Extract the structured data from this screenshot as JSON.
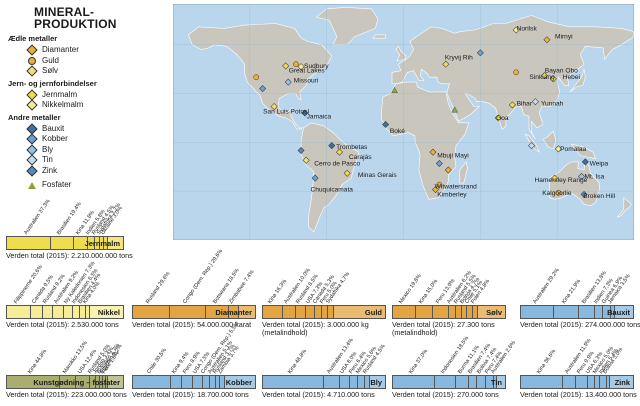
{
  "title": [
    "MINERAL-",
    "PRODUKTION"
  ],
  "legend": {
    "groups": [
      {
        "heading": "Ædle metaller",
        "items": [
          {
            "label": "Diamanter",
            "shape": "diamond",
            "color": "#e8b03a"
          },
          {
            "label": "Guld",
            "shape": "circle",
            "color": "#e8b03a"
          },
          {
            "label": "Sølv",
            "shape": "diamond",
            "color": "#f4e07a"
          }
        ]
      },
      {
        "heading": "Jern- og jernforbindelser",
        "items": [
          {
            "label": "Jernmalm",
            "shape": "diamond",
            "color": "#f0dc50"
          },
          {
            "label": "Nikkelmalm",
            "shape": "diamond",
            "color": "#f7ec98"
          }
        ]
      },
      {
        "heading": "Andre metaller",
        "items": [
          {
            "label": "Bauxit",
            "shape": "diamond",
            "color": "#3e6f9e"
          },
          {
            "label": "Kobber",
            "shape": "diamond",
            "color": "#6ea0cc"
          },
          {
            "label": "Bly",
            "shape": "diamond",
            "color": "#9bc1e2"
          },
          {
            "label": "Tin",
            "shape": "diamond",
            "color": "#c7dcee"
          },
          {
            "label": "Zink",
            "shape": "diamond",
            "color": "#5a88b8"
          }
        ]
      },
      {
        "heading": "",
        "items": [
          {
            "label": "Fosfater",
            "shape": "triangle",
            "color": "#8aa63a"
          }
        ]
      }
    ]
  },
  "map_labels": [
    {
      "text": "Sudbury",
      "lon": -80,
      "lat": 47
    },
    {
      "text": "Great Lakes",
      "lon": -92,
      "lat": 44
    },
    {
      "text": "Missouri",
      "lon": -88,
      "lat": 38
    },
    {
      "text": "San Luis Potosí",
      "lon": -112,
      "lat": 19
    },
    {
      "text": "Jamaica",
      "lon": -78,
      "lat": 16
    },
    {
      "text": "Trombetas",
      "lon": -55,
      "lat": -3
    },
    {
      "text": "Carajás",
      "lon": -45,
      "lat": -9
    },
    {
      "text": "Cerro de Pasco",
      "lon": -72,
      "lat": -13
    },
    {
      "text": "Chuquicamata",
      "lon": -75,
      "lat": -29
    },
    {
      "text": "Minas Gerais",
      "lon": -38,
      "lat": -20
    },
    {
      "text": "Boké",
      "lon": -13,
      "lat": 7
    },
    {
      "text": "Mbuji Mayi",
      "lon": 24,
      "lat": -8
    },
    {
      "text": "Witwatersrand",
      "lon": 22,
      "lat": -27
    },
    {
      "text": "Kimberley",
      "lon": 24,
      "lat": -32
    },
    {
      "text": "Kryvij Rih",
      "lon": 30,
      "lat": 52
    },
    {
      "text": "Norilsk",
      "lon": 86,
      "lat": 70
    },
    {
      "text": "Mirnyi",
      "lon": 116,
      "lat": 65
    },
    {
      "text": "Bayan Obo",
      "lon": 108,
      "lat": 44
    },
    {
      "text": "Sinkiang",
      "lon": 96,
      "lat": 40
    },
    {
      "text": "Hebei",
      "lon": 122,
      "lat": 40
    },
    {
      "text": "Yunnah",
      "lon": 105,
      "lat": 24
    },
    {
      "text": "Bihar",
      "lon": 86,
      "lat": 24
    },
    {
      "text": "Goa",
      "lon": 70,
      "lat": 15
    },
    {
      "text": "Pomalaa",
      "lon": 120,
      "lat": -4
    },
    {
      "text": "Weipa",
      "lon": 143,
      "lat": -13
    },
    {
      "text": "Hamersley Range",
      "lon": 100,
      "lat": -23
    },
    {
      "text": "Mt. Isa",
      "lon": 139,
      "lat": -21
    },
    {
      "text": "Kalgoorlie",
      "lon": 106,
      "lat": -31
    },
    {
      "text": "Broken Hill",
      "lon": 138,
      "lat": -33
    }
  ],
  "charts": [
    {
      "name": "Jernmalm",
      "color": "#f0dc50",
      "total": "Verden total (2015): 2.210.000.000 tons",
      "subtotal": "",
      "shares": [
        {
          "label": "Australien 37,3%",
          "value": 37.3
        },
        {
          "label": "Brasilien 19,4%",
          "value": 19.4
        },
        {
          "label": "Kina 11,8%",
          "value": 11.8
        },
        {
          "label": "Indien 5,8%",
          "value": 5.8
        },
        {
          "label": "Rusland 4,5%",
          "value": 4.5
        },
        {
          "label": "Sydafrika 3,7%",
          "value": 3.7
        },
        {
          "label": "Ukraine 3,0%",
          "value": 3.0
        }
      ]
    },
    {
      "name": "Nikkel",
      "color": "#f7ec98",
      "total": "Verden total (2015): 2.530.000 tons",
      "subtotal": "",
      "shares": [
        {
          "label": "Filippinerne 20,6%",
          "value": 20.6
        },
        {
          "label": "Canada 9,5%",
          "value": 9.5
        },
        {
          "label": "Rusland 9,2%",
          "value": 9.2
        },
        {
          "label": "Australien 9,2%",
          "value": 9.2
        },
        {
          "label": "Ny Kaledonien 7,3%",
          "value": 7.3
        },
        {
          "label": "Indonesien 6,5%",
          "value": 6.5
        },
        {
          "label": "Brasilien 4,4%",
          "value": 4.4
        },
        {
          "label": "Kina 4,0%",
          "value": 4.0
        }
      ]
    },
    {
      "name": "Diamanter",
      "color": "#e3a542",
      "total": "Verden total (2015): 54.000.000 karat",
      "subtotal": "",
      "shares": [
        {
          "label": "Rusland 29,6%",
          "value": 29.6
        },
        {
          "label": "Congo (Dem. Rep.) 29,6%",
          "value": 29.6
        },
        {
          "label": "Botswana 18,5%",
          "value": 18.5
        },
        {
          "label": "Zimbabwe 7,4%",
          "value": 7.4
        }
      ]
    },
    {
      "name": "Guld",
      "color": "#e3a542",
      "total": "Verden total (2015): 3.000.000 kg",
      "subtotal": "(metalindhold)",
      "shares": [
        {
          "label": "Kina 16,3%",
          "value": 16.3
        },
        {
          "label": "Australien 10,0%",
          "value": 10.0
        },
        {
          "label": "Rusland 8,5%",
          "value": 8.5
        },
        {
          "label": "USA 7,3%",
          "value": 7.3
        },
        {
          "label": "Canada 5,3%",
          "value": 5.3
        },
        {
          "label": "Peru 5,0%",
          "value": 5.0
        },
        {
          "label": "Sydafrika 4,7%",
          "value": 4.7
        }
      ]
    },
    {
      "name": "Sølv",
      "color": "#e3a542",
      "total": "Verden total (2015): 27.300 tons",
      "subtotal": "(metalindhold)",
      "shares": [
        {
          "label": "Mexico 19,8%",
          "value": 19.8
        },
        {
          "label": "Kina 15,0%",
          "value": 15.0
        },
        {
          "label": "Peru 13,9%",
          "value": 13.9
        },
        {
          "label": "Australien 6,2%",
          "value": 6.2
        },
        {
          "label": "Rusland 5,5%",
          "value": 5.5
        },
        {
          "label": "Bolivia 4,7%",
          "value": 4.7
        },
        {
          "label": "Chile 5,1%",
          "value": 5.1
        },
        {
          "label": "Polen 4,8%",
          "value": 4.8
        }
      ]
    },
    {
      "name": "Bauxit",
      "color": "#88b8de",
      "total": "Verden total (2015): 274.000.000 tons",
      "subtotal": "",
      "shares": [
        {
          "label": "Australien 29,2%",
          "value": 29.2
        },
        {
          "label": "Kina 21,9%",
          "value": 21.9
        },
        {
          "label": "Brasilien 13,8%",
          "value": 13.8
        },
        {
          "label": "Indien 7,3%",
          "value": 7.3
        },
        {
          "label": "Guinea 6,9%",
          "value": 6.9
        },
        {
          "label": "Jamaica 3,5%",
          "value": 3.5
        }
      ]
    },
    {
      "name": "Kunstgødning – fosfater",
      "color": "#a9ae6e",
      "total": "Verden total (2015): 223.000.000 tons",
      "subtotal": "",
      "shares": [
        {
          "label": "Kina 44,8%",
          "value": 44.8
        },
        {
          "label": "Marokko 13,5%",
          "value": 13.5
        },
        {
          "label": "USA 12,4%",
          "value": 12.4
        },
        {
          "label": "Rusland 5,0%",
          "value": 5.0
        },
        {
          "label": "Jordan 3,4%",
          "value": 3.4
        },
        {
          "label": "Brasilien 2,7%",
          "value": 2.7
        },
        {
          "label": "Egypten 2,2%",
          "value": 2.2
        },
        {
          "label": "Peru 1,8%",
          "value": 1.8
        }
      ]
    },
    {
      "name": "Kobber",
      "color": "#88b8de",
      "total": "Verden total (2015): 18.700.000 tons",
      "subtotal": "",
      "shares": [
        {
          "label": "Chile 30,5%",
          "value": 30.5
        },
        {
          "label": "Kina 9,4%",
          "value": 9.4
        },
        {
          "label": "Peru 8,9%",
          "value": 8.9
        },
        {
          "label": "USA 7,5%",
          "value": 7.5
        },
        {
          "label": "Congo (Dem. Rep.) 5,5%",
          "value": 5.5
        },
        {
          "label": "Australien 5,1%",
          "value": 5.1
        },
        {
          "label": "Rusland 3,7%",
          "value": 3.7
        },
        {
          "label": "Zambia 3,7%",
          "value": 3.7
        }
      ]
    },
    {
      "name": "Bly",
      "color": "#88b8de",
      "total": "Verden total (2015): 4.710.000 tons",
      "subtotal": "",
      "shares": [
        {
          "label": "Kina 48,8%",
          "value": 48.8
        },
        {
          "label": "Australien 13,4%",
          "value": 13.4
        },
        {
          "label": "USA 8,0%",
          "value": 8.0
        },
        {
          "label": "Peru 6,4%",
          "value": 6.4
        },
        {
          "label": "Mexico 5,6%",
          "value": 5.6
        },
        {
          "label": "Rusland 4,5%",
          "value": 4.5
        }
      ]
    },
    {
      "name": "Tin",
      "color": "#88b8de",
      "total": "Verden total (2015): 270.000 tons",
      "subtotal": "",
      "shares": [
        {
          "label": "Kina 37,0%",
          "value": 37.0
        },
        {
          "label": "Indonesien 18,5%",
          "value": 18.5
        },
        {
          "label": "Burma 11,1%",
          "value": 11.1
        },
        {
          "label": "Brasilien 7,4%",
          "value": 7.4
        },
        {
          "label": "Bolivia 7,4%",
          "value": 7.4
        },
        {
          "label": "Peru 7,4%",
          "value": 7.4
        },
        {
          "label": "Australien 2,6%",
          "value": 2.6
        }
      ]
    },
    {
      "name": "Zink",
      "color": "#88b8de",
      "total": "Verden total (2015): 13.400.000 tons",
      "subtotal": "",
      "shares": [
        {
          "label": "Kina 36,6%",
          "value": 36.6
        },
        {
          "label": "Australien 11,9%",
          "value": 11.9
        },
        {
          "label": "Peru 9,9%",
          "value": 9.9
        },
        {
          "label": "USA 6,3%",
          "value": 6.3
        },
        {
          "label": "Mexico 5,0%",
          "value": 5.0
        },
        {
          "label": "Indien 5,4%",
          "value": 5.4
        },
        {
          "label": "Bolivia 3,0%",
          "value": 3.0
        }
      ]
    }
  ]
}
